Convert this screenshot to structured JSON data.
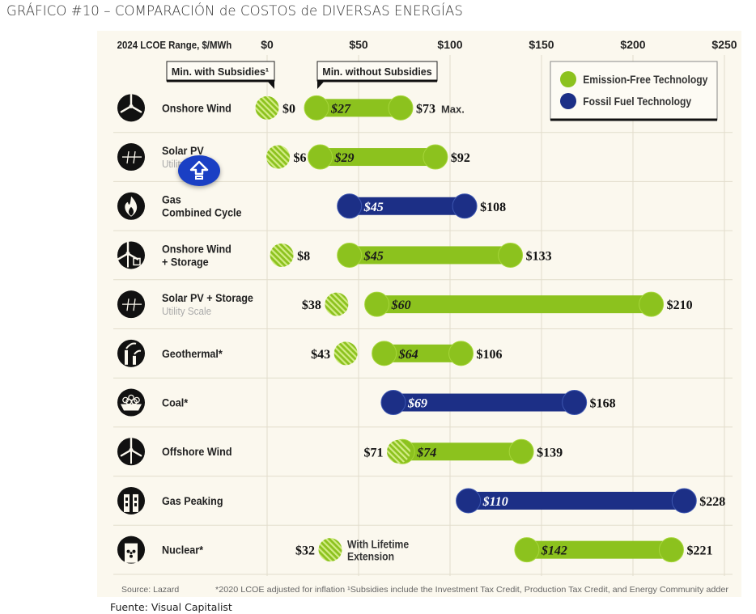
{
  "page": {
    "title": "GRÁFICO #10 – COMPARACIÓN de COSTOS de DIVERSAS ENERGÍAS",
    "caption": "Fuente: Visual Capitalist"
  },
  "scroll_button": {
    "icon": "arrow-up-bar-icon",
    "color": "#1a3fc4"
  },
  "chart_data": {
    "type": "range-bar",
    "axis_title": "2024 LCOE Range, $/MWh",
    "xlim": [
      0,
      250
    ],
    "ticks": [
      0,
      50,
      100,
      150,
      200,
      250
    ],
    "tick_labels": [
      "$0",
      "$50",
      "$100",
      "$150",
      "$200",
      "$250"
    ],
    "grid": true,
    "callouts": {
      "with_subsidies": "Min. with Subsidies¹",
      "without_subsidies": "Min. without Subsidies"
    },
    "legend": {
      "position": "top-right",
      "items": [
        {
          "key": "emission_free",
          "label": "Emission-Free Technology",
          "color": "#8cc21e"
        },
        {
          "key": "fossil",
          "label": "Fossil Fuel Technology",
          "color": "#1c2f86"
        }
      ]
    },
    "colors": {
      "emission_free": "#8cc21e",
      "fossil": "#1c2f86",
      "hatch_light": "#c7e56b"
    },
    "rows": [
      {
        "name": "Onshore Wind",
        "sub": "",
        "icon": "wind-turbine-icon",
        "category": "emission_free",
        "min_subsidized": 0,
        "min_subsidized_label": "$0",
        "min": 27,
        "min_label": "$27",
        "max": 73,
        "max_label": "$73",
        "max_suffix": "Max."
      },
      {
        "name": "Solar PV",
        "sub": "Utility Scale",
        "icon": "solar-panel-icon",
        "category": "emission_free",
        "min_subsidized": 6,
        "min_subsidized_label": "$6",
        "min": 29,
        "min_label": "$29",
        "max": 92,
        "max_label": "$92",
        "max_suffix": ""
      },
      {
        "name": "Gas",
        "name2": "Combined Cycle",
        "sub": "",
        "icon": "flame-icon",
        "category": "fossil",
        "min_subsidized": null,
        "min_subsidized_label": "",
        "min": 45,
        "min_label": "$45",
        "max": 108,
        "max_label": "$108",
        "max_suffix": ""
      },
      {
        "name": "Onshore Wind",
        "name2": "+ Storage",
        "sub": "",
        "icon": "wind-storage-icon",
        "category": "emission_free",
        "min_subsidized": 8,
        "min_subsidized_label": "$8",
        "min": 45,
        "min_label": "$45",
        "max": 133,
        "max_label": "$133",
        "max_suffix": ""
      },
      {
        "name": "Solar PV + Storage",
        "sub": "Utility Scale",
        "icon": "solar-storage-icon",
        "category": "emission_free",
        "min_subsidized": 38,
        "min_subsidized_label": "$38",
        "min": 60,
        "min_label": "$60",
        "max": 210,
        "max_label": "$210",
        "max_suffix": ""
      },
      {
        "name": "Geothermal*",
        "sub": "",
        "icon": "geothermal-icon",
        "category": "emission_free",
        "min_subsidized": 43,
        "min_subsidized_label": "$43",
        "min": 64,
        "min_label": "$64",
        "max": 106,
        "max_label": "$106",
        "max_suffix": ""
      },
      {
        "name": "Coal*",
        "sub": "",
        "icon": "coal-icon",
        "category": "fossil",
        "min_subsidized": null,
        "min_subsidized_label": "",
        "min": 69,
        "min_label": "$69",
        "max": 168,
        "max_label": "$168",
        "max_suffix": ""
      },
      {
        "name": "Offshore Wind",
        "sub": "",
        "icon": "offshore-wind-icon",
        "category": "emission_free",
        "min_subsidized": 71,
        "min_subsidized_label": "$71",
        "min": 74,
        "min_label": "$74",
        "max": 139,
        "max_label": "$139",
        "max_suffix": ""
      },
      {
        "name": "Gas Peaking",
        "sub": "",
        "icon": "gas-peaking-icon",
        "category": "fossil",
        "min_subsidized": null,
        "min_subsidized_label": "",
        "min": 110,
        "min_label": "$110",
        "max": 228,
        "max_label": "$228",
        "max_suffix": ""
      },
      {
        "name": "Nuclear*",
        "sub": "",
        "icon": "nuclear-icon",
        "category": "emission_free",
        "min_subsidized": 32,
        "min_subsidized_label": "$32",
        "min_subsidized_note": "With Lifetime Extension",
        "min": 142,
        "min_label": "$142",
        "max": 221,
        "max_label": "$221",
        "max_suffix": ""
      }
    ],
    "footer": {
      "source": "Source: Lazard",
      "note": "*2020 LCOE adjusted for inflation  ¹Subsidies include the Investment Tax Credit, Production Tax Credit, and Energy Community adder"
    }
  }
}
